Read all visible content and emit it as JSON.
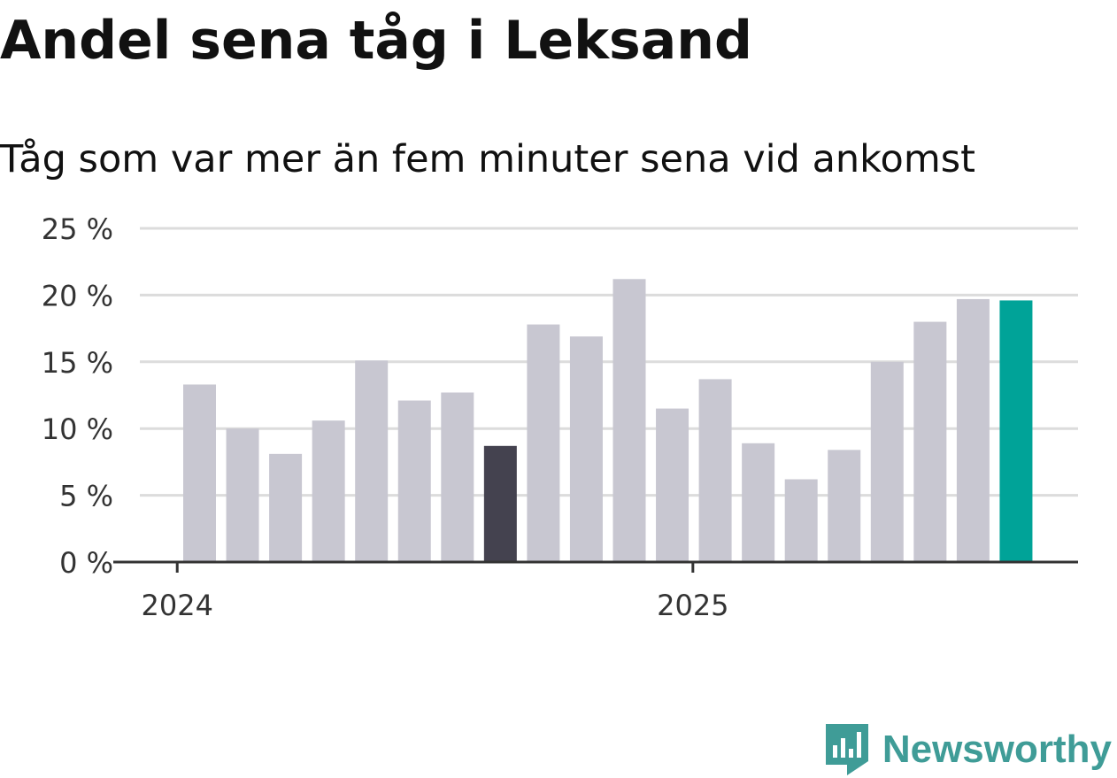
{
  "title": "Andel sena tåg i Leksand",
  "subtitle": "Tåg som var mer än fem minuter sena vid ankomst",
  "brand": {
    "name": "Newsworthy",
    "icon": "newsworthy-logo-icon",
    "color": "#3f9c97"
  },
  "colors": {
    "bar_default": "#c8c7d1",
    "bar_highlight_dark": "#44424f",
    "bar_highlight_latest": "#00a398",
    "grid": "#dcdcdc",
    "axis": "#333333"
  },
  "chart_data": {
    "type": "bar",
    "title": "Andel sena tåg i Leksand",
    "subtitle": "Tåg som var mer än fem minuter sena vid ankomst",
    "xlabel": "",
    "ylabel": "",
    "x_tick_labels": [
      "2024",
      "2025"
    ],
    "y_tick_labels": [
      "0 %",
      "5 %",
      "10 %",
      "15 %",
      "20 %",
      "25 %"
    ],
    "y_ticks": [
      0,
      5,
      10,
      15,
      20,
      25
    ],
    "ylim": [
      0,
      25
    ],
    "grid": true,
    "categories": [
      "2024-01",
      "2024-02",
      "2024-03",
      "2024-04",
      "2024-05",
      "2024-06",
      "2024-07",
      "2024-08",
      "2024-09",
      "2024-10",
      "2024-11",
      "2024-12",
      "2025-01",
      "2025-02",
      "2025-03",
      "2025-04",
      "2025-05",
      "2025-06",
      "2025-07",
      "2025-08"
    ],
    "values": [
      13.3,
      10.0,
      8.1,
      10.6,
      15.1,
      12.1,
      12.7,
      8.7,
      17.8,
      16.9,
      21.2,
      11.5,
      13.7,
      8.9,
      6.2,
      8.4,
      15.0,
      18.0,
      19.7,
      19.6
    ],
    "highlight": {
      "2024-08": "dark",
      "2025-08": "latest"
    }
  }
}
